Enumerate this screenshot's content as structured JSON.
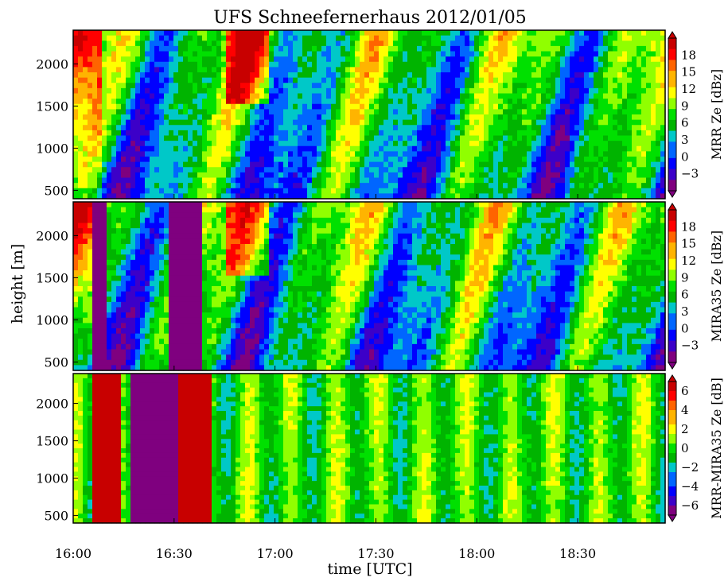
{
  "chart_data": {
    "type": "heatmap",
    "title": "UFS Schneefernerhaus 2012/01/05",
    "xlabel": "time [UTC]",
    "ylabel": "height [m]",
    "x_ticks": [
      "16:00",
      "16:30",
      "17:00",
      "17:30",
      "18:00",
      "18:30"
    ],
    "x_range_minutes": [
      0,
      176
    ],
    "x_tick_minutes": [
      0,
      30,
      60,
      90,
      120,
      150
    ],
    "y_ticks": [
      500,
      1000,
      1500,
      2000
    ],
    "y_range_m": [
      400,
      2400
    ],
    "panels": [
      {
        "name": "MRR",
        "colorbar_label": "MRR Ze [dBz]",
        "colorbar_ticks": [
          "18",
          "15",
          "12",
          "9",
          "6",
          "3",
          "0",
          "−3"
        ],
        "range": [
          -6,
          21
        ]
      },
      {
        "name": "MIRA35",
        "colorbar_label": "MIRA35 Ze [dBz]",
        "colorbar_ticks": [
          "18",
          "15",
          "12",
          "9",
          "6",
          "3",
          "0",
          "−3"
        ],
        "range": [
          -6,
          21
        ]
      },
      {
        "name": "MRR-MIRA35",
        "colorbar_label": "MRR-MIRA35 Ze [dB]",
        "colorbar_ticks": [
          "6",
          "4",
          "2",
          "0",
          "−2",
          "−4",
          "−6"
        ],
        "range": [
          -7,
          7
        ]
      }
    ],
    "colormap": [
      "#7f007f",
      "#3c00c8",
      "#0000ff",
      "#0066ff",
      "#00c8c8",
      "#00b400",
      "#00e000",
      "#90ff00",
      "#ffff00",
      "#ffb400",
      "#ff6400",
      "#ff0000",
      "#c80000"
    ]
  }
}
